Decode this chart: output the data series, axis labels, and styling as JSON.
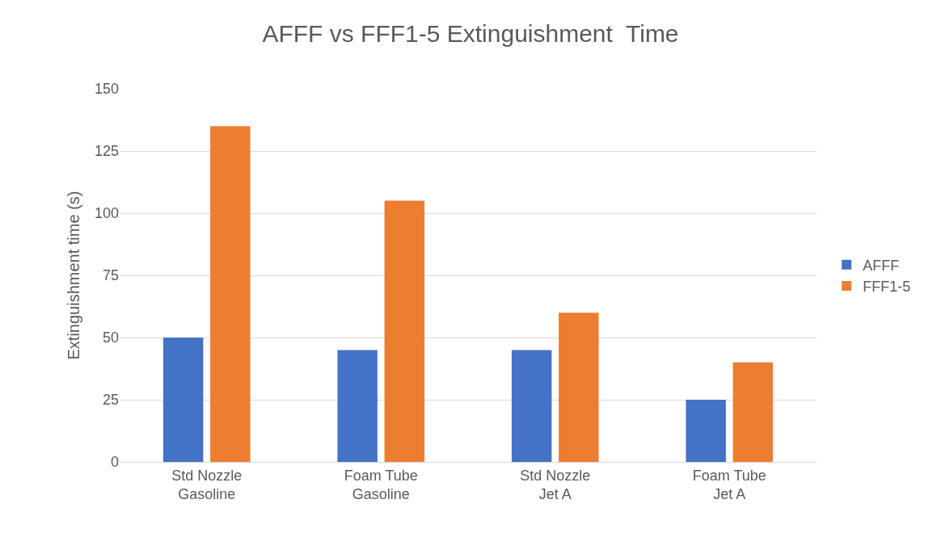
{
  "chart_data": {
    "type": "bar",
    "title": "AFFF vs FFF1-5 Extinguishment  Time",
    "ylabel": "Extinguishment time (s)",
    "categories": [
      "Std Nozzle\nGasoline",
      "Foam Tube\nGasoline",
      "Std Nozzle\nJet A",
      "Foam Tube\nJet A"
    ],
    "series": [
      {
        "name": "AFFF",
        "color": "#4472c4",
        "values": [
          50,
          45,
          45,
          25
        ]
      },
      {
        "name": "FFF1-5",
        "color": "#ed7d31",
        "values": [
          135,
          105,
          60,
          40
        ]
      }
    ],
    "ylim": [
      0,
      150
    ],
    "yticks": [
      0,
      25,
      50,
      75,
      100,
      125,
      150
    ],
    "grid": "y",
    "legend": "right"
  }
}
